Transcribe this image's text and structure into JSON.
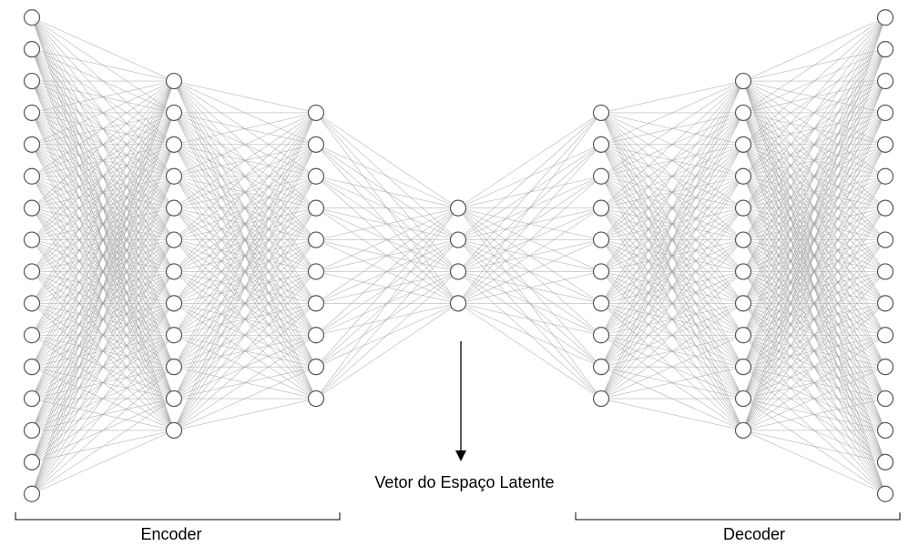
{
  "diagram": {
    "layers": [
      {
        "name": "input",
        "nodes": 16
      },
      {
        "name": "encoder-hidden-1",
        "nodes": 12
      },
      {
        "name": "encoder-hidden-2",
        "nodes": 10
      },
      {
        "name": "latent",
        "nodes": 4
      },
      {
        "name": "decoder-hidden-1",
        "nodes": 10
      },
      {
        "name": "decoder-hidden-2",
        "nodes": 12
      },
      {
        "name": "output",
        "nodes": 16
      }
    ],
    "latent_label": "Vetor do Espaço Latente",
    "encoder_label": "Encoder",
    "decoder_label": "Decoder"
  }
}
